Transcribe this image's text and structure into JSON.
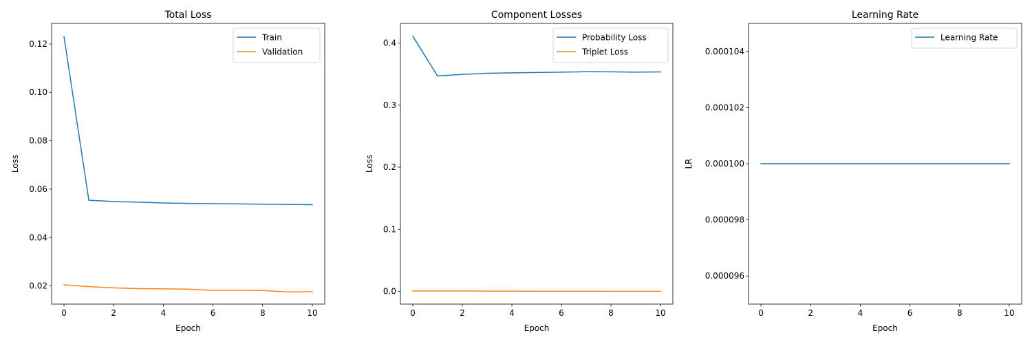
{
  "chart_data": [
    {
      "type": "line",
      "title": "Total Loss",
      "xlabel": "Epoch",
      "ylabel": "Loss",
      "xlim": [
        -0.5,
        10.5
      ],
      "ylim": [
        0.0125,
        0.1285
      ],
      "xticks": [
        0,
        2,
        4,
        6,
        8,
        10
      ],
      "xtick_labels": [
        "0",
        "2",
        "4",
        "6",
        "8",
        "10"
      ],
      "yticks": [
        0.02,
        0.04,
        0.06,
        0.08,
        0.1,
        0.12
      ],
      "ytick_labels": [
        "0.02",
        "0.04",
        "0.06",
        "0.08",
        "0.10",
        "0.12"
      ],
      "legend": "top-right",
      "grid": false,
      "x": [
        0,
        1,
        2,
        3,
        4,
        5,
        6,
        7,
        8,
        9,
        10
      ],
      "series": [
        {
          "name": "Train",
          "color": "#1f77b4",
          "values": [
            0.123,
            0.0554,
            0.0549,
            0.0546,
            0.0543,
            0.0541,
            0.054,
            0.0539,
            0.0538,
            0.0537,
            0.0536
          ]
        },
        {
          "name": "Validation",
          "color": "#ff7f0e",
          "values": [
            0.0205,
            0.0197,
            0.0192,
            0.0189,
            0.0188,
            0.0187,
            0.0182,
            0.0182,
            0.0181,
            0.0175,
            0.0176
          ]
        }
      ]
    },
    {
      "type": "line",
      "title": "Component Losses",
      "xlabel": "Epoch",
      "ylabel": "Loss",
      "xlim": [
        -0.5,
        10.5
      ],
      "ylim": [
        -0.0205,
        0.4317
      ],
      "xticks": [
        0,
        2,
        4,
        6,
        8,
        10
      ],
      "xtick_labels": [
        "0",
        "2",
        "4",
        "6",
        "8",
        "10"
      ],
      "yticks": [
        0.0,
        0.1,
        0.2,
        0.3,
        0.4
      ],
      "ytick_labels": [
        "0.0",
        "0.1",
        "0.2",
        "0.3",
        "0.4"
      ],
      "legend": "top-right",
      "grid": false,
      "x": [
        0,
        1,
        2,
        3,
        4,
        5,
        6,
        7,
        8,
        9,
        10
      ],
      "series": [
        {
          "name": "Probability Loss",
          "color": "#1f77b4",
          "values": [
            0.411,
            0.347,
            0.3495,
            0.3513,
            0.352,
            0.3526,
            0.3532,
            0.3538,
            0.3537,
            0.3532,
            0.3535
          ]
        },
        {
          "name": "Triplet Loss",
          "color": "#ff7f0e",
          "values": [
            0.0005,
            0.0005,
            0.0005,
            0.0004,
            0.0004,
            0.0003,
            0.0003,
            0.0003,
            0.0002,
            0.0002,
            0.0002
          ]
        }
      ]
    },
    {
      "type": "line",
      "title": "Learning Rate",
      "xlabel": "Epoch",
      "ylabel": "LR",
      "xlim": [
        -0.5,
        10.5
      ],
      "ylim": [
        9.5e-05,
        0.000105
      ],
      "xticks": [
        0,
        2,
        4,
        6,
        8,
        10
      ],
      "xtick_labels": [
        "0",
        "2",
        "4",
        "6",
        "8",
        "10"
      ],
      "yticks": [
        9.6e-05,
        9.8e-05,
        0.0001,
        0.000102,
        0.000104
      ],
      "ytick_labels": [
        "0.000096",
        "0.000098",
        "0.000100",
        "0.000102",
        "0.000104"
      ],
      "legend": "top-right",
      "grid": false,
      "x": [
        0,
        1,
        2,
        3,
        4,
        5,
        6,
        7,
        8,
        9,
        10
      ],
      "series": [
        {
          "name": "Learning Rate",
          "color": "#1f77b4",
          "values": [
            0.0001,
            0.0001,
            0.0001,
            0.0001,
            0.0001,
            0.0001,
            0.0001,
            0.0001,
            0.0001,
            0.0001,
            0.0001
          ]
        }
      ]
    }
  ]
}
